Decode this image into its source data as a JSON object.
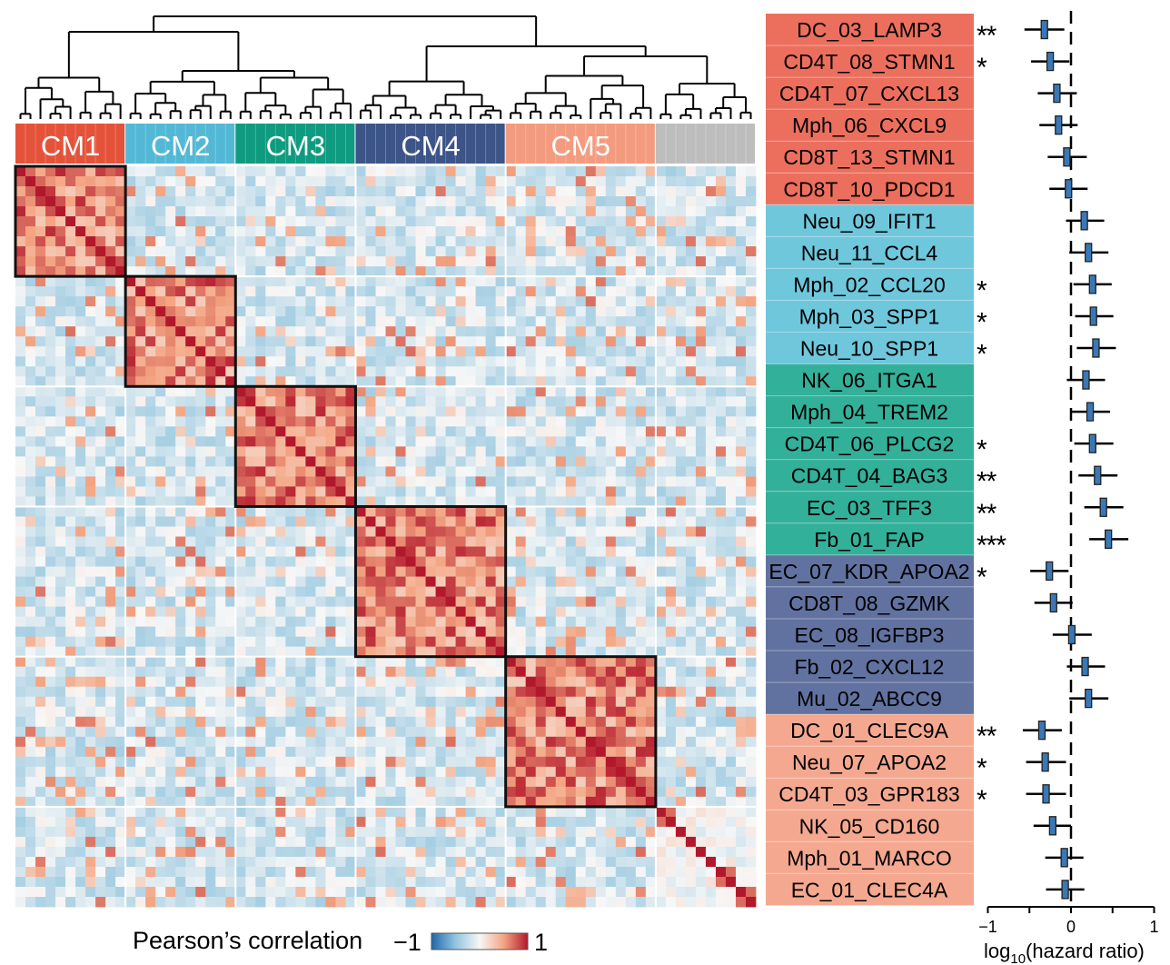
{
  "chart_data": [
    {
      "type": "heatmap",
      "note_scale": "Pearson's correlation",
      "legend": {
        "title": "Pearson’s correlation",
        "min_label": "−1",
        "max_label": "1",
        "range": [
          -1,
          1
        ],
        "colors": [
          "#2166ac",
          "#92c5de",
          "#f7f7f7",
          "#f4a582",
          "#b2182b"
        ]
      },
      "clusters": [
        {
          "name": "CM1",
          "size": 11,
          "color": "#e5523a"
        },
        {
          "name": "CM2",
          "size": 11,
          "color": "#52b8d6"
        },
        {
          "name": "CM3",
          "size": 12,
          "color": "#0e9b7f"
        },
        {
          "name": "CM4",
          "size": 15,
          "color": "#3c5488"
        },
        {
          "name": "CM5",
          "size": 15,
          "color": "#f39b7f"
        },
        {
          "name": "",
          "size": 10,
          "color": "#bdbdbd"
        }
      ]
    },
    {
      "type": "forest",
      "xlabel": "log10(hazard ratio)",
      "xlabel_base": "log",
      "xlabel_sub": "10",
      "xlabel_rest": "(hazard ratio)",
      "xlim": [
        -1,
        1
      ],
      "xticks": [
        -1,
        -0.5,
        0,
        0.5,
        1
      ],
      "xtick_labels": [
        "−1",
        "",
        "0",
        "",
        "1"
      ],
      "reference_line": 0,
      "rows": [
        {
          "label": "DC_03_LAMP3",
          "group": 0,
          "sig": "**",
          "est": -0.32,
          "lo": -0.56,
          "hi": -0.08
        },
        {
          "label": "CD4T_08_STMN1",
          "group": 0,
          "sig": "*",
          "est": -0.25,
          "lo": -0.48,
          "hi": -0.02
        },
        {
          "label": "CD4T_07_CXCL13",
          "group": 0,
          "sig": "",
          "est": -0.17,
          "lo": -0.4,
          "hi": 0.07
        },
        {
          "label": "Mph_06_CXCL9",
          "group": 0,
          "sig": "",
          "est": -0.15,
          "lo": -0.38,
          "hi": 0.08
        },
        {
          "label": "CD8T_13_STMN1",
          "group": 0,
          "sig": "",
          "est": -0.05,
          "lo": -0.28,
          "hi": 0.19
        },
        {
          "label": "CD8T_10_PDCD1",
          "group": 0,
          "sig": "",
          "est": -0.03,
          "lo": -0.26,
          "hi": 0.2
        },
        {
          "label": "Neu_09_IFIT1",
          "group": 1,
          "sig": "",
          "est": 0.16,
          "lo": -0.06,
          "hi": 0.4
        },
        {
          "label": "Neu_11_CCL4",
          "group": 1,
          "sig": "",
          "est": 0.21,
          "lo": -0.02,
          "hi": 0.45
        },
        {
          "label": "Mph_02_CCL20",
          "group": 1,
          "sig": "*",
          "est": 0.26,
          "lo": 0.03,
          "hi": 0.49
        },
        {
          "label": "Mph_03_SPP1",
          "group": 1,
          "sig": "*",
          "est": 0.27,
          "lo": 0.05,
          "hi": 0.51
        },
        {
          "label": "Neu_10_SPP1",
          "group": 1,
          "sig": "*",
          "est": 0.3,
          "lo": 0.07,
          "hi": 0.54
        },
        {
          "label": "NK_06_ITGA1",
          "group": 2,
          "sig": "",
          "est": 0.18,
          "lo": -0.05,
          "hi": 0.41
        },
        {
          "label": "Mph_04_TREM2",
          "group": 2,
          "sig": "",
          "est": 0.23,
          "lo": 0.0,
          "hi": 0.47
        },
        {
          "label": "CD4T_06_PLCG2",
          "group": 2,
          "sig": "*",
          "est": 0.26,
          "lo": 0.04,
          "hi": 0.51
        },
        {
          "label": "CD4T_04_BAG3",
          "group": 2,
          "sig": "**",
          "est": 0.32,
          "lo": 0.09,
          "hi": 0.56
        },
        {
          "label": "EC_03_TFF3",
          "group": 2,
          "sig": "**",
          "est": 0.39,
          "lo": 0.16,
          "hi": 0.63
        },
        {
          "label": "Fb_01_FAP",
          "group": 2,
          "sig": "***",
          "est": 0.45,
          "lo": 0.22,
          "hi": 0.69
        },
        {
          "label": "EC_07_KDR_APOA2",
          "group": 3,
          "sig": "*",
          "est": -0.26,
          "lo": -0.49,
          "hi": -0.03
        },
        {
          "label": "CD8T_08_GZMK",
          "group": 3,
          "sig": "",
          "est": -0.21,
          "lo": -0.44,
          "hi": 0.02
        },
        {
          "label": "EC_08_IGFBP3",
          "group": 3,
          "sig": "",
          "est": 0.01,
          "lo": -0.22,
          "hi": 0.25
        },
        {
          "label": "Fb_02_CXCL12",
          "group": 3,
          "sig": "",
          "est": 0.17,
          "lo": -0.05,
          "hi": 0.41
        },
        {
          "label": "Mu_02_ABCC9",
          "group": 3,
          "sig": "",
          "est": 0.21,
          "lo": -0.02,
          "hi": 0.45
        },
        {
          "label": "DC_01_CLEC9A",
          "group": 4,
          "sig": "**",
          "est": -0.35,
          "lo": -0.58,
          "hi": -0.11
        },
        {
          "label": "Neu_07_APOA2",
          "group": 4,
          "sig": "*",
          "est": -0.31,
          "lo": -0.54,
          "hi": -0.06
        },
        {
          "label": "CD4T_03_GPR183",
          "group": 4,
          "sig": "*",
          "est": -0.3,
          "lo": -0.54,
          "hi": -0.06
        },
        {
          "label": "NK_05_CD160",
          "group": 4,
          "sig": "",
          "est": -0.22,
          "lo": -0.45,
          "hi": 0.0
        },
        {
          "label": "Mph_01_MARCO",
          "group": 4,
          "sig": "",
          "est": -0.08,
          "lo": -0.31,
          "hi": 0.15
        },
        {
          "label": "EC_01_CLEC4A",
          "group": 4,
          "sig": "",
          "est": -0.07,
          "lo": -0.3,
          "hi": 0.16
        }
      ],
      "label_colors": [
        "#ec6f5e",
        "#6fc7dc",
        "#33b09a",
        "#6272a0",
        "#f5a890"
      ],
      "box_color": "#3a78b5"
    }
  ]
}
